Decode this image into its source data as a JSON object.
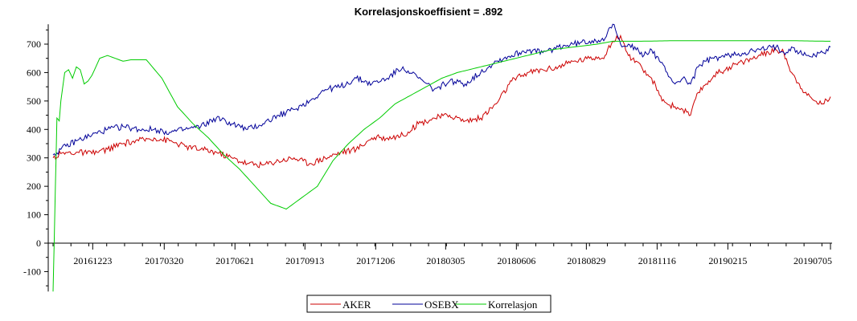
{
  "chart_data": {
    "type": "line",
    "title": "Korrelasjonskoeffisient =  .892",
    "xlabel": "",
    "ylabel": "",
    "ylim": [
      -170,
      770
    ],
    "yticks": [
      -100,
      0,
      100,
      200,
      300,
      400,
      500,
      600,
      700
    ],
    "x_tick_labels": [
      "20161223",
      "20170320",
      "20170621",
      "20170913",
      "20171206",
      "20180305",
      "20180606",
      "20180829",
      "20181116",
      "20190215",
      "20190705"
    ],
    "x_range": [
      0,
      100
    ],
    "x_tick_positions": [
      5.1,
      14.3,
      23.4,
      32.4,
      41.5,
      50.5,
      59.6,
      68.6,
      77.7,
      86.8,
      100
    ],
    "grid": false,
    "legend_position": "bottom-center",
    "series": [
      {
        "name": "AKER",
        "color": "#cc0000",
        "x": [
          0,
          1,
          3,
          5,
          7,
          9,
          11,
          13,
          15,
          17,
          19,
          21,
          23,
          25,
          27,
          29,
          31,
          33,
          35,
          37,
          39,
          41,
          43,
          45,
          47,
          49,
          51,
          53,
          55,
          57,
          59,
          61,
          63,
          65,
          67,
          69,
          71,
          72,
          73,
          74,
          75,
          76,
          77,
          78,
          79,
          80,
          81,
          82,
          83,
          84,
          85,
          87,
          89,
          91,
          93,
          94,
          95,
          96,
          97,
          98,
          99,
          100
        ],
        "values": [
          300,
          315,
          320,
          315,
          330,
          350,
          360,
          370,
          360,
          340,
          330,
          320,
          300,
          280,
          275,
          290,
          300,
          280,
          300,
          320,
          330,
          370,
          370,
          380,
          420,
          440,
          450,
          430,
          440,
          490,
          570,
          600,
          610,
          620,
          640,
          650,
          660,
          710,
          730,
          660,
          640,
          600,
          580,
          520,
          490,
          480,
          470,
          450,
          530,
          560,
          590,
          620,
          640,
          660,
          680,
          670,
          600,
          560,
          520,
          500,
          490,
          515
        ]
      },
      {
        "name": "OSEBX",
        "color": "#000099",
        "x": [
          0,
          1,
          3,
          5,
          7,
          9,
          11,
          13,
          15,
          17,
          19,
          21,
          23,
          25,
          27,
          29,
          31,
          33,
          35,
          37,
          39,
          41,
          43,
          45,
          47,
          49,
          51,
          53,
          55,
          57,
          59,
          61,
          63,
          65,
          67,
          69,
          71,
          72,
          73,
          74,
          75,
          76,
          77,
          78,
          79,
          80,
          81,
          82,
          83,
          84,
          85,
          87,
          89,
          91,
          93,
          94,
          95,
          96,
          97,
          98,
          99,
          100
        ],
        "values": [
          310,
          330,
          360,
          380,
          400,
          410,
          400,
          400,
          390,
          400,
          410,
          440,
          420,
          400,
          420,
          450,
          470,
          500,
          540,
          550,
          580,
          560,
          580,
          620,
          580,
          540,
          570,
          560,
          600,
          640,
          660,
          680,
          670,
          690,
          700,
          710,
          720,
          770,
          700,
          700,
          680,
          660,
          680,
          640,
          600,
          560,
          580,
          560,
          620,
          640,
          650,
          660,
          670,
          680,
          690,
          670,
          690,
          670,
          660,
          660,
          670,
          690
        ]
      },
      {
        "name": "Korrelasjon",
        "color": "#00cc00",
        "x": [
          0,
          0.3,
          0.5,
          0.8,
          1,
          1.5,
          2,
          2.5,
          3,
          3.5,
          4,
          4.5,
          5,
          6,
          7,
          8,
          9,
          10,
          12,
          14,
          16,
          18,
          20,
          22,
          24,
          26,
          28,
          30,
          32,
          34,
          36,
          38,
          40,
          42,
          44,
          46,
          48,
          50,
          52,
          55,
          58,
          61,
          64,
          67,
          70,
          72,
          75,
          80,
          85,
          90,
          95,
          100
        ],
        "values": [
          -170,
          200,
          440,
          430,
          500,
          600,
          610,
          580,
          620,
          610,
          560,
          570,
          590,
          650,
          660,
          650,
          640,
          645,
          645,
          580,
          480,
          420,
          370,
          310,
          260,
          200,
          140,
          120,
          160,
          200,
          290,
          350,
          400,
          440,
          490,
          520,
          550,
          580,
          600,
          620,
          640,
          660,
          680,
          690,
          700,
          710,
          710,
          712,
          712,
          712,
          712,
          710
        ]
      }
    ]
  }
}
